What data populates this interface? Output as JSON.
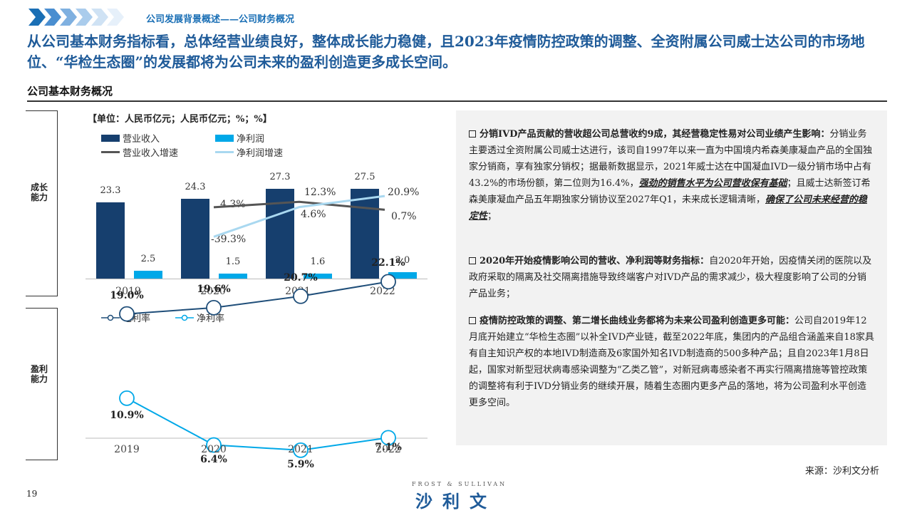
{
  "header": {
    "breadcrumb": "公司发展背景概述——公司财务概况",
    "headline": "从公司基本财务指标看，总体经营业绩良好，整体成长能力稳健，且2023年疫情防控政策的调整、全资附属公司威士达公司的市场地位、“华检生态圈”的发展都将为公司未来的盈利创造更多成长空间。",
    "subtitle": "公司基本财务概况"
  },
  "side_labels": {
    "growth": "成长能力",
    "profit": "盈利能力"
  },
  "chart_data": [
    {
      "type": "bar",
      "unit_note": "【单位：人民币亿元；人民币亿元；%；%】",
      "categories": [
        "2019",
        "2020",
        "2021",
        "2022"
      ],
      "series": [
        {
          "name": "营业收入",
          "values": [
            23.3,
            24.3,
            27.3,
            27.5
          ],
          "labels": [
            "23.3",
            "24.3",
            "27.3",
            "27.5"
          ],
          "color": "#163f6e"
        },
        {
          "name": "净利润",
          "values": [
            2.5,
            1.5,
            1.6,
            2.0
          ],
          "labels": [
            "2.5",
            "1.5",
            "1.6",
            "2.0"
          ],
          "color": "#00a8e8"
        },
        {
          "name": "营业收入增速",
          "type": "line",
          "values": [
            4.3,
            12.3,
            0.7
          ],
          "x": [
            "2020",
            "2021",
            "2022"
          ],
          "labels": [
            "4.3%",
            "12.3%",
            "0.7%"
          ],
          "color": "#555555"
        },
        {
          "name": "净利润增速",
          "type": "line",
          "values": [
            -39.3,
            4.6,
            20.9
          ],
          "x": [
            "2020",
            "2021",
            "2022"
          ],
          "labels": [
            "-39.3%",
            "4.6%",
            "20.9%"
          ],
          "color": "#a9d8f0"
        }
      ]
    },
    {
      "type": "line",
      "categories": [
        "2019",
        "2020",
        "2021",
        "2022"
      ],
      "series": [
        {
          "name": "毛利率",
          "values": [
            19.0,
            19.6,
            20.7,
            22.1
          ],
          "labels": [
            "19.0%",
            "19.6%",
            "20.7%",
            "22.1%"
          ],
          "color": "#1f4e79"
        },
        {
          "name": "净利率",
          "values": [
            10.9,
            6.4,
            5.9,
            7.1
          ],
          "labels": [
            "10.9%",
            "6.4%",
            "5.9%",
            "7.1%"
          ],
          "color": "#00a8e8"
        }
      ]
    }
  ],
  "panel": {
    "b1_head": "分销IVD产品贡献的营收超公司总营收约9成，其经营稳定性易对公司业绩产生影响：",
    "b1_body1": "分销业务主要透过全资附属公司威士达进行，该司自1997年以来一直为中国境内希森美康凝血产品的全国独家分销商，享有独家分销权；据最新数据显示，2021年威士达在中国凝血IVD一级分销市场中占有43.2%的市场份额，第二位则为16.4%，",
    "b1_em1": "强劲的销售水平为公司营收保有基础",
    "b1_body2": "；且威士达新签订希森美康凝血产品五年期独家分销协议至2027年Q1，未来成长逻辑清晰，",
    "b1_em2": "确保了公司未来经营的稳定性",
    "b1_end": "；",
    "b2_head": "2020年开始疫情影响公司的营收、净利润等财务指标：",
    "b2_body": "自2020年开始，因疫情关闭的医院以及政府采取的隔离及社交隔离措施导致终端客户对IVD产品的需求减少，极大程度影响了公司的分销产品业务；",
    "b3_head": "疫情防控政策的调整、第二增长曲线业务都将为未来公司盈利创造更多可能：",
    "b3_body": "公司自2019年12月底开始建立“华检生态圈”以补全IVD产业链，截至2022年底，集团内的产品组合涵盖来自18家具有自主知识产权的本地IVD制造商及6家国外知名IVD制造商的500多种产品；且自2023年1月8日起，国家对新型冠状病毒感染调整为“乙类乙管”，对新冠病毒感染者不再实行隔离措施等管控政策的调整将有利于IVD分销业务的继续开展，随着生态圈内更多产品的落地，将为公司盈利水平创造更多空间。"
  },
  "footer": {
    "source": "来源：沙利文分析",
    "page": "19",
    "logo_top": "FROST & SULLIVAN",
    "logo": "沙利文"
  }
}
